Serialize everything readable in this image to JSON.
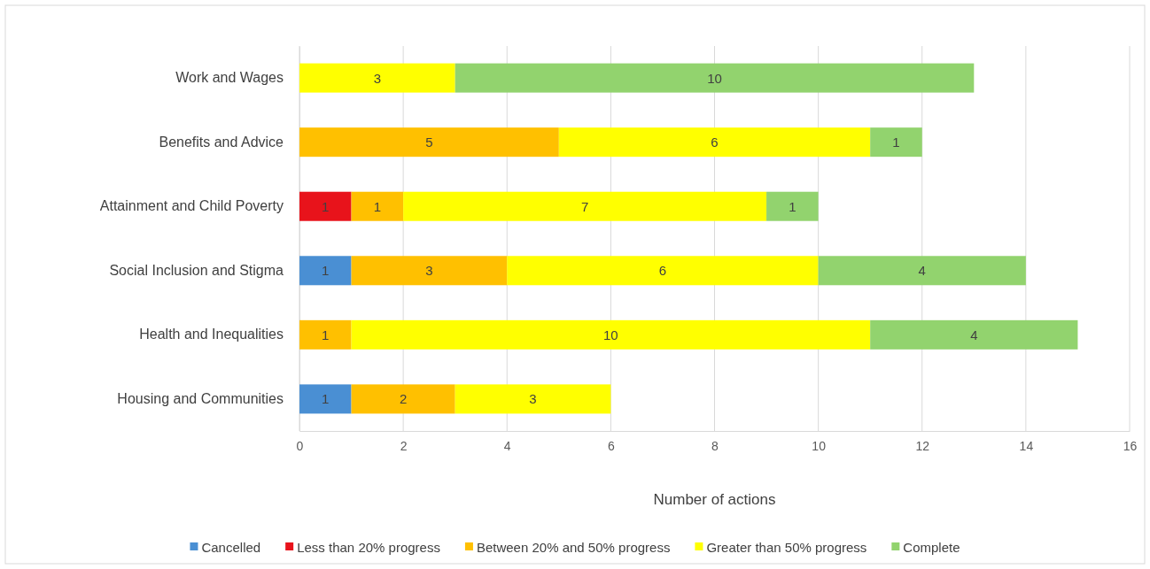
{
  "chart_data": {
    "type": "bar",
    "orientation": "horizontal",
    "stacked": true,
    "data_labels": true,
    "grid": "x",
    "legend": "bottom",
    "xlabel": "Number of actions",
    "xlim": [
      0,
      16
    ],
    "xticks": [
      0,
      2,
      4,
      6,
      8,
      10,
      12,
      14,
      16
    ],
    "categories": [
      "Work and Wages",
      "Benefits and Advice",
      "Attainment and Child Poverty",
      "Social Inclusion and Stigma",
      "Health and Inequalities",
      "Housing and Communities"
    ],
    "series": [
      {
        "name": "Cancelled",
        "color": "#4a8fd3",
        "values": [
          null,
          null,
          null,
          1,
          null,
          1
        ]
      },
      {
        "name": "Less than 20% progress",
        "color": "#e8131b",
        "values": [
          null,
          null,
          1,
          null,
          null,
          null
        ]
      },
      {
        "name": "Between 20% and 50% progress",
        "color": "#ffc000",
        "values": [
          null,
          5,
          1,
          3,
          1,
          2
        ]
      },
      {
        "name": "Greater than 50% progress",
        "color": "#ffff00",
        "values": [
          3,
          6,
          7,
          6,
          10,
          3
        ]
      },
      {
        "name": "Complete",
        "color": "#92d36e",
        "values": [
          10,
          1,
          1,
          4,
          4,
          null
        ]
      }
    ]
  }
}
